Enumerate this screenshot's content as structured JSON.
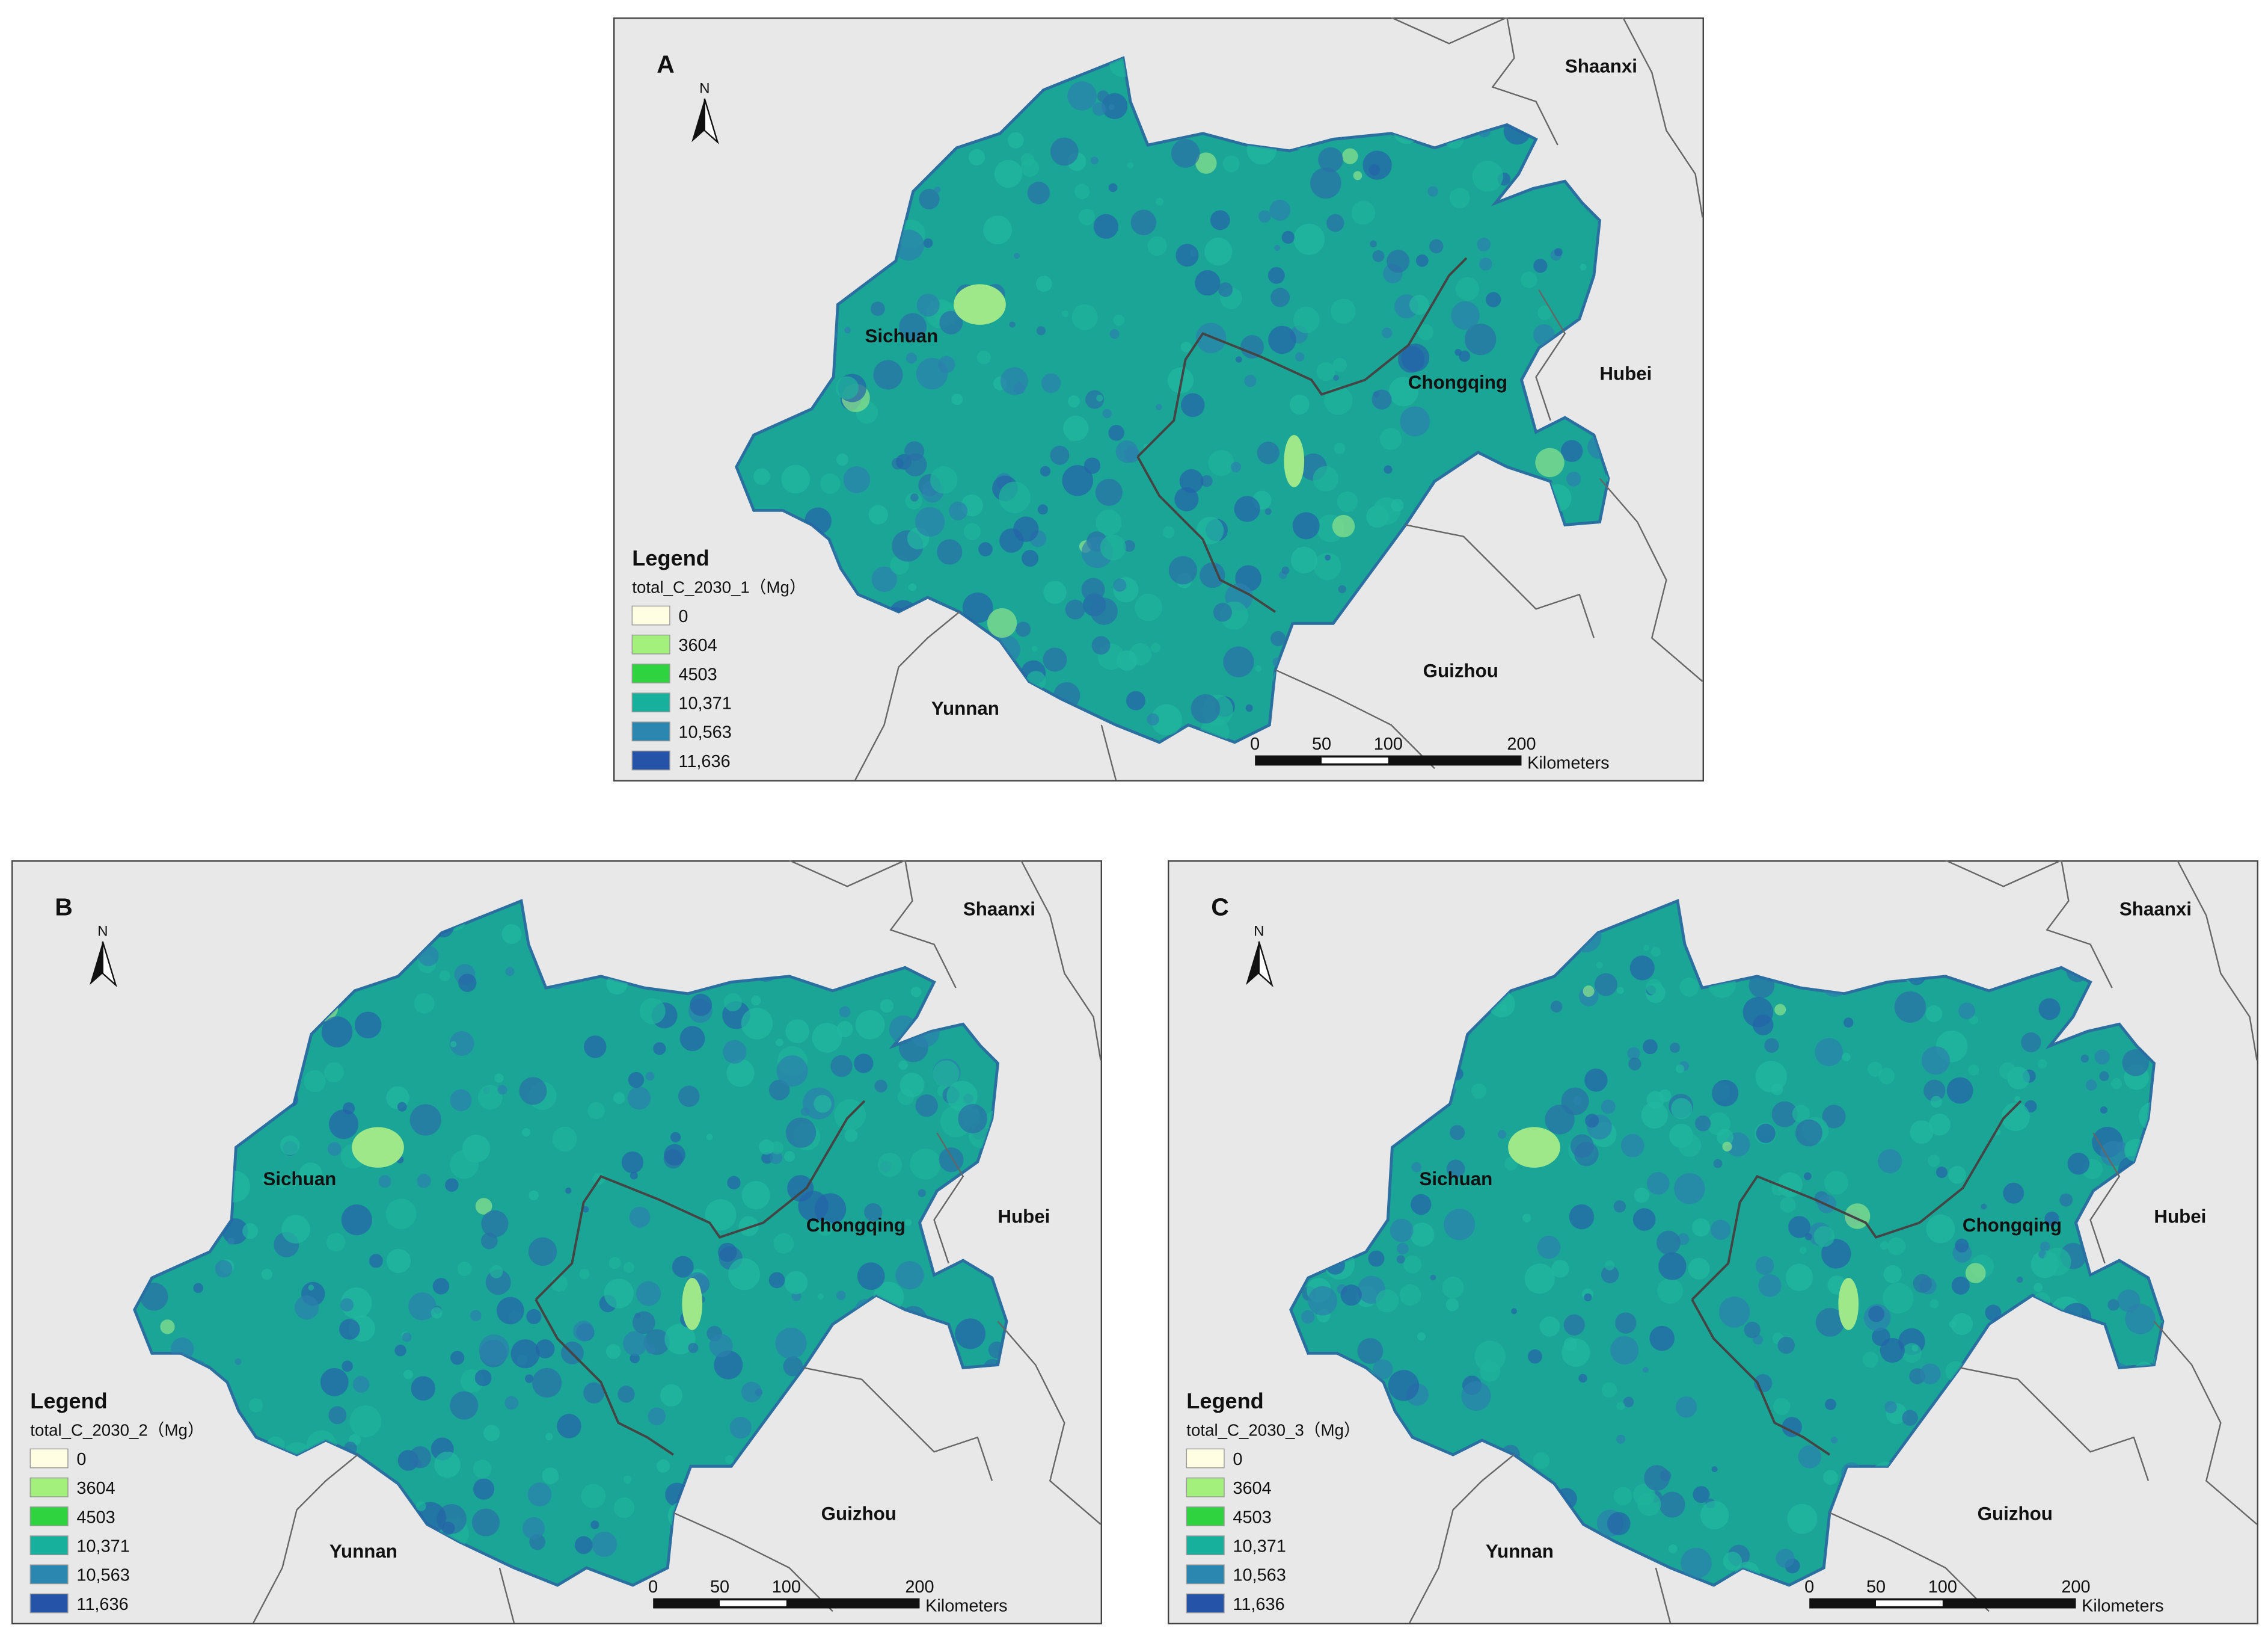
{
  "panels": [
    {
      "label": "A",
      "north": "N",
      "places": [
        "Shaanxi",
        "Sichuan",
        "Chongqing",
        "Hubei",
        "Guizhou",
        "Yunnan"
      ],
      "legend": {
        "title": "Legend",
        "field": "total_C_2030_1（Mg）",
        "items": [
          {
            "label": "0",
            "color": "#fffde2"
          },
          {
            "label": "3604",
            "color": "#a3f07c"
          },
          {
            "label": "4503",
            "color": "#2ed33f"
          },
          {
            "label": "10,371",
            "color": "#17b09d"
          },
          {
            "label": "10,563",
            "color": "#2b86b0"
          },
          {
            "label": "11,636",
            "color": "#2453a8"
          }
        ]
      },
      "scale": {
        "ticks": [
          "0",
          "50",
          "100",
          "200"
        ],
        "unit": "Kilometers"
      }
    },
    {
      "label": "B",
      "north": "N",
      "places": [
        "Shaanxi",
        "Sichuan",
        "Chongqing",
        "Hubei",
        "Guizhou",
        "Yunnan"
      ],
      "legend": {
        "title": "Legend",
        "field": "total_C_2030_2（Mg）",
        "items": [
          {
            "label": "0",
            "color": "#fffde2"
          },
          {
            "label": "3604",
            "color": "#a3f07c"
          },
          {
            "label": "4503",
            "color": "#2ed33f"
          },
          {
            "label": "10,371",
            "color": "#17b09d"
          },
          {
            "label": "10,563",
            "color": "#2b86b0"
          },
          {
            "label": "11,636",
            "color": "#2453a8"
          }
        ]
      },
      "scale": {
        "ticks": [
          "0",
          "50",
          "100",
          "200"
        ],
        "unit": "Kilometers"
      }
    },
    {
      "label": "C",
      "north": "N",
      "places": [
        "Shaanxi",
        "Sichuan",
        "Chongqing",
        "Hubei",
        "Guizhou",
        "Yunnan"
      ],
      "legend": {
        "title": "Legend",
        "field": "total_C_2030_3（Mg）",
        "items": [
          {
            "label": "0",
            "color": "#fffde2"
          },
          {
            "label": "3604",
            "color": "#a3f07c"
          },
          {
            "label": "4503",
            "color": "#2ed33f"
          },
          {
            "label": "10,371",
            "color": "#17b09d"
          },
          {
            "label": "10,563",
            "color": "#2b86b0"
          },
          {
            "label": "11,636",
            "color": "#2453a8"
          }
        ]
      },
      "scale": {
        "ticks": [
          "0",
          "50",
          "100",
          "200"
        ],
        "unit": "Kilometers"
      }
    }
  ]
}
